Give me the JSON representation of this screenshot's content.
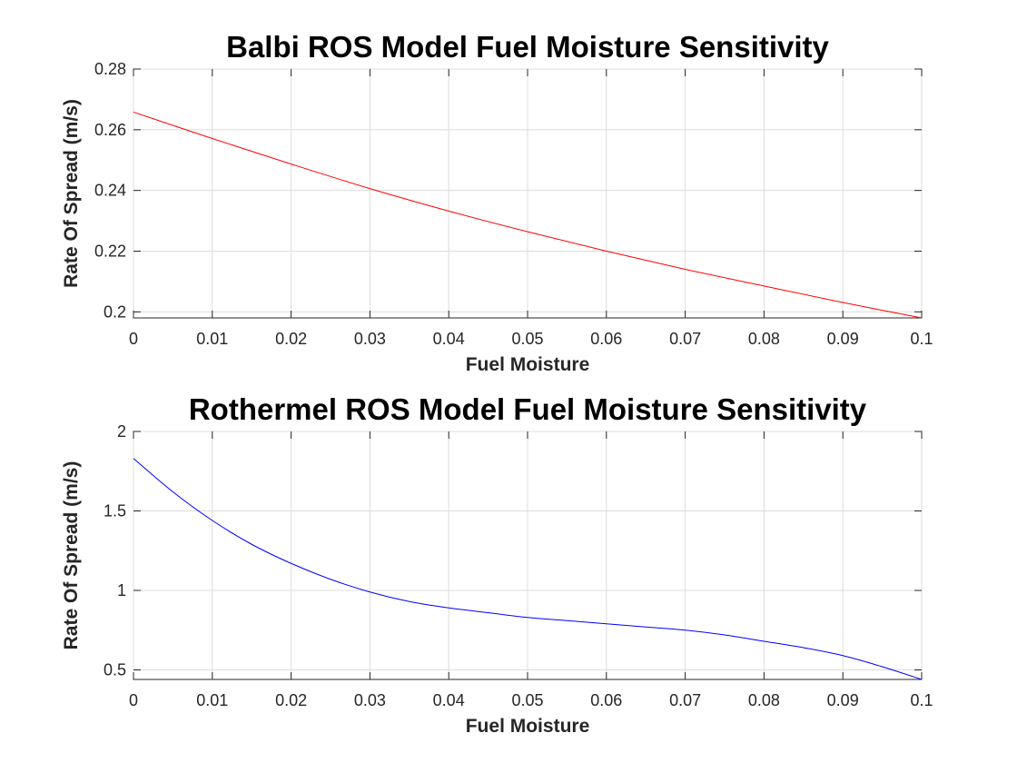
{
  "chart_data": [
    {
      "type": "line",
      "title": "Balbi ROS Model Fuel Moisture Sensitivity",
      "xlabel": "Fuel Moisture",
      "ylabel": "Rate Of Spread (m/s)",
      "xlim": [
        0,
        0.1
      ],
      "ylim": [
        0.198,
        0.28
      ],
      "xticks": [
        0,
        0.01,
        0.02,
        0.03,
        0.04,
        0.05,
        0.06,
        0.07,
        0.08,
        0.09,
        0.1
      ],
      "xtick_labels": [
        "0",
        "0.01",
        "0.02",
        "0.03",
        "0.04",
        "0.05",
        "0.06",
        "0.07",
        "0.08",
        "0.09",
        "0.1"
      ],
      "yticks": [
        0.2,
        0.22,
        0.24,
        0.26,
        0.28
      ],
      "ytick_labels": [
        "0.2",
        "0.22",
        "0.24",
        "0.26",
        "0.28"
      ],
      "grid": true,
      "series": [
        {
          "color": "#ff0000",
          "x": [
            0,
            0.01,
            0.02,
            0.03,
            0.04,
            0.05,
            0.06,
            0.07,
            0.08,
            0.09,
            0.1
          ],
          "y": [
            0.2658,
            0.2571,
            0.2487,
            0.2406,
            0.2332,
            0.2264,
            0.22,
            0.214,
            0.2085,
            0.2031,
            0.198
          ]
        }
      ]
    },
    {
      "type": "line",
      "title": "Rothermel ROS Model Fuel Moisture Sensitivity",
      "xlabel": "Fuel Moisture",
      "ylabel": "Rate Of Spread (m/s)",
      "xlim": [
        0,
        0.1
      ],
      "ylim": [
        0.44,
        2
      ],
      "xticks": [
        0,
        0.01,
        0.02,
        0.03,
        0.04,
        0.05,
        0.06,
        0.07,
        0.08,
        0.09,
        0.1
      ],
      "xtick_labels": [
        "0",
        "0.01",
        "0.02",
        "0.03",
        "0.04",
        "0.05",
        "0.06",
        "0.07",
        "0.08",
        "0.09",
        "0.1"
      ],
      "yticks": [
        0.5,
        1,
        1.5,
        2
      ],
      "ytick_labels": [
        "0.5",
        "1",
        "1.5",
        "2"
      ],
      "grid": true,
      "series": [
        {
          "color": "#0000ff",
          "x": [
            0,
            0.005,
            0.01,
            0.015,
            0.02,
            0.025,
            0.03,
            0.035,
            0.04,
            0.045,
            0.05,
            0.055,
            0.06,
            0.065,
            0.07,
            0.075,
            0.08,
            0.085,
            0.09,
            0.095,
            0.1
          ],
          "y": [
            1.83,
            1.62,
            1.44,
            1.29,
            1.17,
            1.07,
            0.99,
            0.93,
            0.89,
            0.86,
            0.83,
            0.81,
            0.79,
            0.77,
            0.75,
            0.72,
            0.68,
            0.64,
            0.59,
            0.52,
            0.44
          ]
        }
      ]
    }
  ]
}
